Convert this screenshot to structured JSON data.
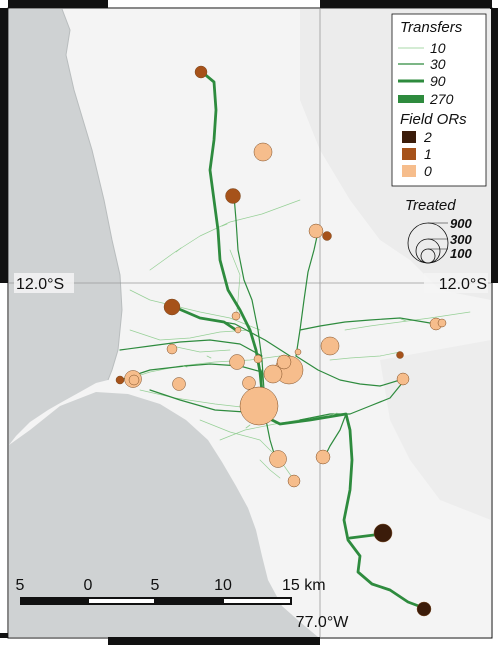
{
  "map": {
    "graticule": {
      "lat_label_left": "12.0°S",
      "lat_label_right": "12.0°S",
      "lon_label": "77.0°W"
    },
    "colors": {
      "ocean": "#cfd2d3",
      "land": "#f4f4f4",
      "transfer_line": "#2e8b3e",
      "field_or_2": "#3b1c0a",
      "field_or_1": "#a6521a",
      "field_or_0": "#f6bd8c",
      "frame": "#111111"
    },
    "legend_transfers": {
      "title": "Transfers",
      "entries": [
        {
          "label": "10",
          "width": 0.6
        },
        {
          "label": "30",
          "width": 1.2
        },
        {
          "label": "90",
          "width": 3.0
        },
        {
          "label": "270",
          "width": 8.0
        }
      ]
    },
    "legend_field_ors": {
      "title": "Field ORs",
      "entries": [
        {
          "label": "2",
          "color": "#3b1c0a"
        },
        {
          "label": "1",
          "color": "#a6521a"
        },
        {
          "label": "0",
          "color": "#f6bd8c"
        }
      ]
    },
    "legend_treated": {
      "title": "Treated",
      "entries": [
        "900",
        "300",
        "100"
      ]
    },
    "scale_bar": {
      "labels": [
        "5",
        "0",
        "5",
        "10",
        "15 km"
      ]
    }
  }
}
